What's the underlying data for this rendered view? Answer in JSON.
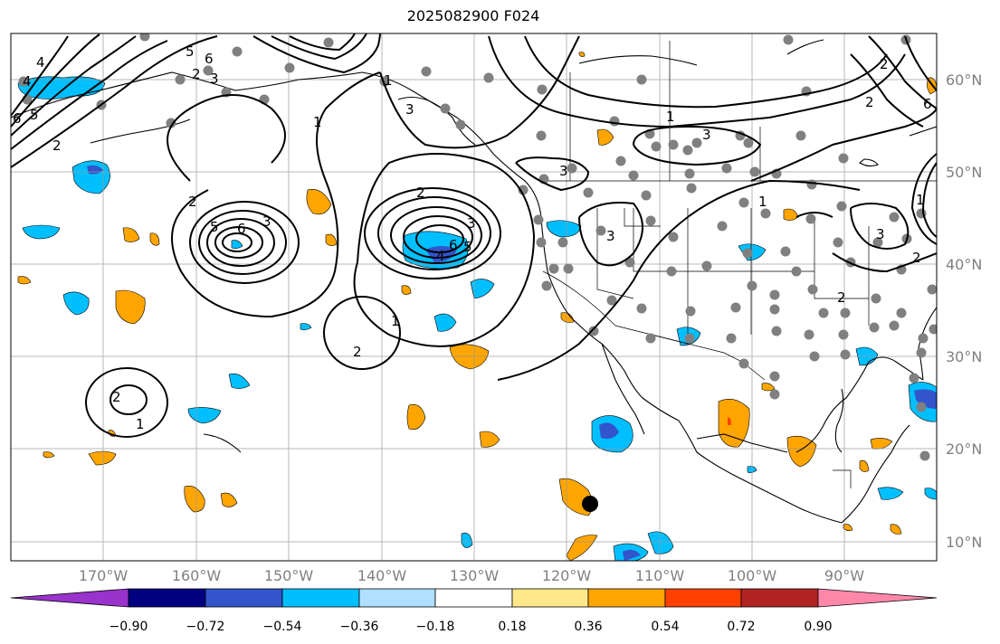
{
  "title": "2025082900 F024",
  "map": {
    "projection": "PlateCarree",
    "lon_range": [
      -180,
      -80
    ],
    "lat_range": [
      8,
      65
    ],
    "lon_ticks": [
      "170°W",
      "160°W",
      "150°W",
      "140°W",
      "130°W",
      "120°W",
      "110°W",
      "100°W",
      "90°W"
    ],
    "lat_ticks": [
      "10°N",
      "20°N",
      "30°N",
      "40°N",
      "50°N",
      "60°N"
    ],
    "gridlines": true,
    "contour_labels": [
      "4",
      "4",
      "5",
      "6",
      "2",
      "6",
      "5",
      "3",
      "2",
      "1",
      "6",
      "5",
      "3",
      "2",
      "3",
      "2",
      "4",
      "6",
      "5",
      "3",
      "1",
      "3",
      "1",
      "3",
      "3",
      "1",
      "2",
      "2",
      "1",
      "1",
      "2",
      "1",
      "3",
      "2",
      "2",
      "2",
      "6"
    ]
  },
  "colorbar": {
    "tick_labels": [
      "−0.90",
      "−0.72",
      "−0.54",
      "−0.36",
      "−0.18",
      "0.18",
      "0.36",
      "0.54",
      "0.72",
      "0.90"
    ],
    "colors": [
      "#9933cc",
      "#000080",
      "#3355cc",
      "#00bfff",
      "#b0e0ff",
      "#ffffff",
      "#ffe88a",
      "#ffa500",
      "#ff4000",
      "#b22222",
      "#ff88aa"
    ]
  },
  "legend_colors": {
    "coast": "#000000",
    "grid": "#999999",
    "station": "#808080",
    "marker": "#000000"
  }
}
